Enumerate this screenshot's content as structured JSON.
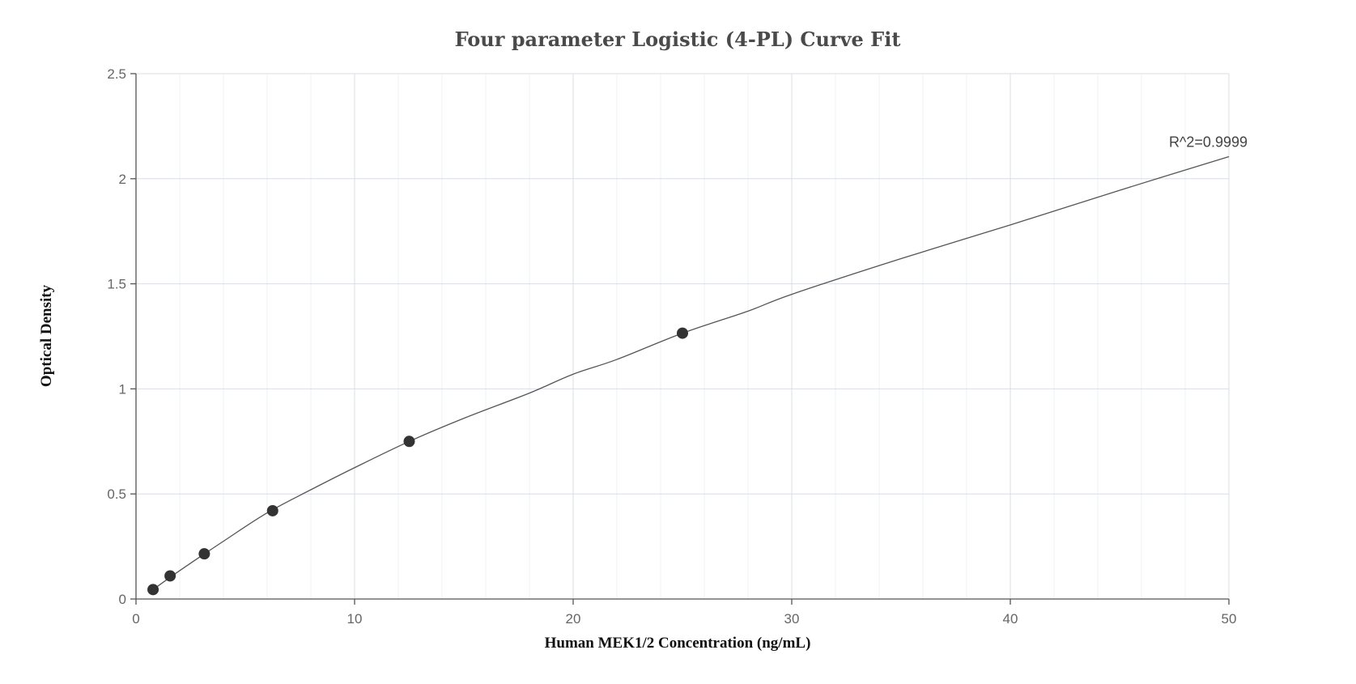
{
  "chart_data": {
    "type": "scatter",
    "title": "Four parameter Logistic (4-PL) Curve Fit",
    "xlabel": "Human MEK1/2 Concentration (ng/mL)",
    "ylabel": "Optical Density",
    "xlim": [
      0,
      50
    ],
    "ylim": [
      0,
      2.5
    ],
    "x_ticks": [
      0,
      10,
      20,
      30,
      40,
      50
    ],
    "x_tick_labels": [
      "0",
      "10",
      "20",
      "30",
      "40",
      "50"
    ],
    "y_ticks": [
      0,
      0.5,
      1,
      1.5,
      2,
      2.5
    ],
    "y_tick_labels": [
      "0",
      "0.5",
      "1",
      "1.5",
      "2",
      "2.5"
    ],
    "grid": true,
    "series": [
      {
        "type": "scatter",
        "x": [
          0.78,
          1.56,
          3.125,
          6.25,
          12.5,
          25
        ],
        "y": [
          0.045,
          0.11,
          0.215,
          0.42,
          0.75,
          1.265
        ]
      },
      {
        "type": "line",
        "x": [
          0.78,
          2,
          4,
          6,
          8,
          10,
          12.5,
          15,
          18,
          20,
          22,
          25,
          28,
          30,
          35,
          40,
          45,
          50
        ],
        "y": [
          0.045,
          0.135,
          0.275,
          0.41,
          0.52,
          0.625,
          0.75,
          0.86,
          0.98,
          1.07,
          1.14,
          1.265,
          1.37,
          1.45,
          1.62,
          1.78,
          1.945,
          2.105
        ]
      }
    ],
    "annotations": [
      {
        "text": "R^2=0.9999",
        "x": 50,
        "y": 2.105
      }
    ],
    "colors": {
      "points": "#333333",
      "curve": "#555555",
      "grid": "#d9dde3"
    }
  }
}
